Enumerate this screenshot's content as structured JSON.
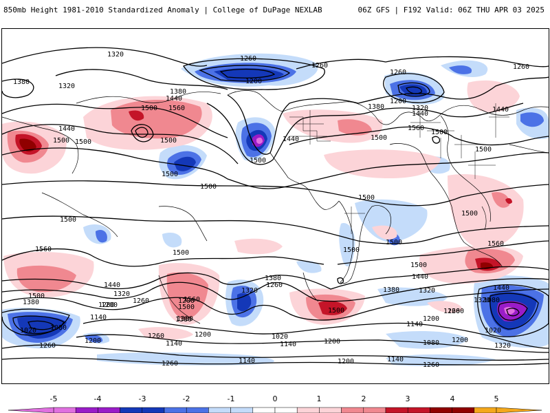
{
  "header": {
    "left": "850mb Height 1981-2010 Standardized Anomaly | College of DuPage NEXLAB",
    "right": "06Z GFS | F192 Valid: 06Z THU APR 03 2025"
  },
  "colors": {
    "neg5": "#e070e0",
    "neg4": "#9a1cc8",
    "neg3": "#1438b8",
    "neg2": "#4c72e6",
    "neg1": "#c4dcfa",
    "pos1": "#fcd4d8",
    "pos2": "#f08890",
    "pos3": "#c41428",
    "pos4": "#900000",
    "pos5": "#f4a81c",
    "contour": "#000000",
    "land": "#000000"
  },
  "contour_labels": [
    "1320",
    "1380",
    "1320",
    "1260",
    "1260",
    "1260",
    "1260",
    "1200",
    "1200",
    "1320",
    "1380",
    "1440",
    "1380",
    "1440",
    "1500",
    "1560",
    "1440",
    "1500",
    "1500",
    "1500",
    "1440",
    "1500",
    "1500",
    "1560",
    "1500",
    "1500",
    "1500",
    "1440",
    "1500",
    "1500",
    "1500",
    "1500",
    "1500",
    "1500",
    "1500",
    "1560",
    "1560",
    "1500",
    "1500",
    "1440",
    "1380",
    "1320",
    "1260",
    "1200",
    "1380",
    "1320",
    "1260",
    "1200",
    "1560",
    "1500",
    "1380",
    "1440",
    "1320",
    "1260",
    "1380",
    "1440",
    "1320",
    "1500",
    "1260",
    "1200",
    "1140",
    "1080",
    "1020",
    "1200",
    "1140",
    "1380",
    "1260",
    "1140",
    "1200",
    "1260",
    "1200",
    "1200",
    "1140",
    "1080",
    "1080",
    "1020",
    "1200",
    "1320",
    "1260",
    "1020",
    "1140",
    "1200",
    "1140",
    "1260"
  ],
  "colorbar": {
    "ticks": [
      "-5",
      "-4",
      "-3",
      "-2",
      "-1",
      "0",
      "1",
      "2",
      "3",
      "4",
      "5"
    ]
  }
}
